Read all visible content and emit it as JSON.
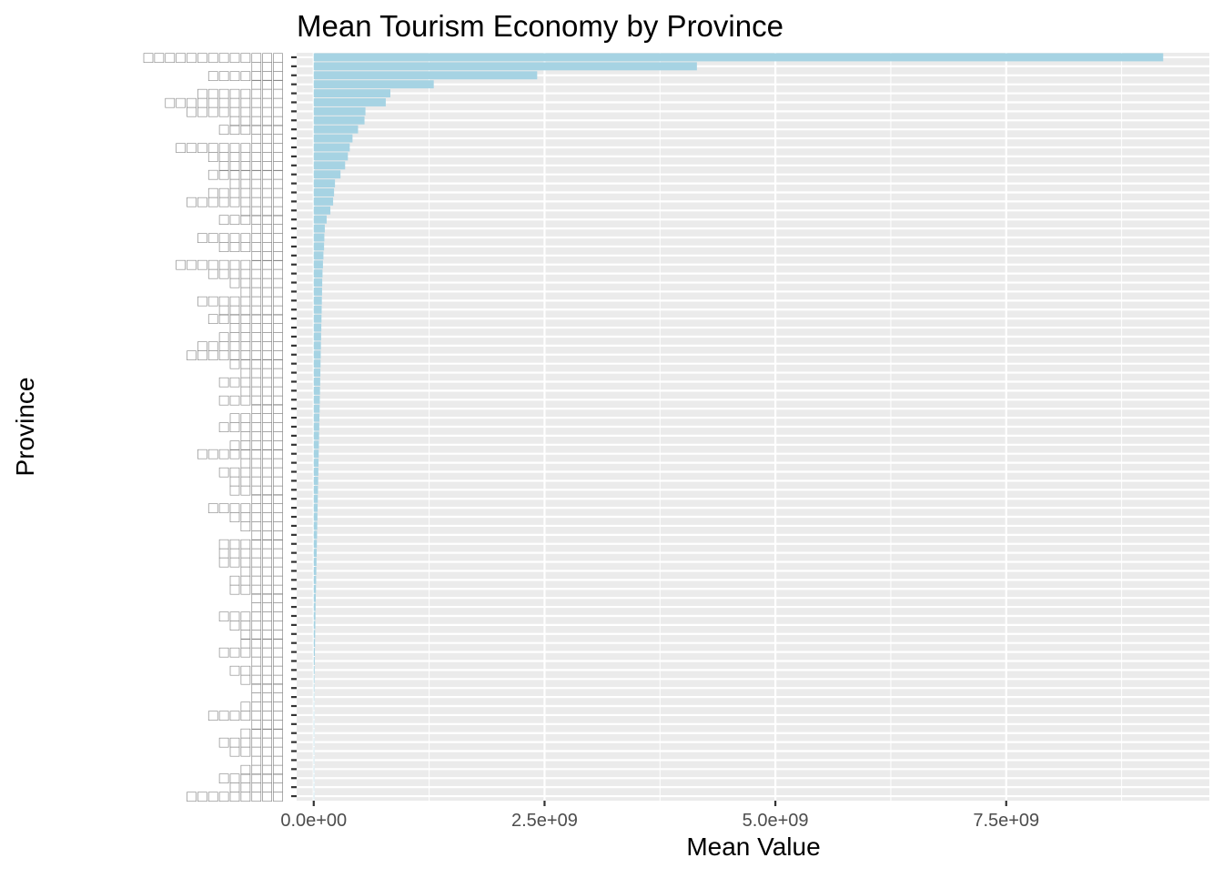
{
  "chart_data": {
    "type": "bar",
    "orientation": "horizontal",
    "title": "Mean Tourism Economy by Province",
    "xlabel": "Mean Value",
    "ylabel": "Province",
    "xlim": [
      -185000000,
      9700000000
    ],
    "xticks": [
      {
        "value": 0,
        "label": "0.0e+00"
      },
      {
        "value": 2500000000,
        "label": "2.5e+09"
      },
      {
        "value": 5000000000,
        "label": "5.0e+09"
      },
      {
        "value": 7500000000,
        "label": "7.5e+09"
      }
    ],
    "grid": true,
    "legend": "none",
    "colors": {
      "bar": "#a6d3e3",
      "panel": "#ebebeb",
      "grid": "#ffffff",
      "tick": "#333333"
    },
    "category_labels": [
      "□□□□□□□□□□□□□",
      "□□□",
      "□□□□□□□",
      "□□□",
      "□□□□□□□□",
      "□□□□□□□□□□□",
      "□□□□□□□□□",
      "□□□□□",
      "□□□□□□",
      "□□□",
      "□□□□□□□□□□",
      "□□□□□□□",
      "□□□□□□",
      "□□□□□□□",
      "□□□□□",
      "□□□□□□□",
      "□□□□□□□□□",
      "□□□□",
      "□□□□□□",
      "□□□",
      "□□□□□□□□",
      "□□□□□□",
      "□□□",
      "□□□□□□□□□□",
      "□□□□□□□",
      "□□□□□",
      "□□□□",
      "□□□□□□□□",
      "□□□□□□",
      "□□□□□□□",
      "□□□□□",
      "□□□□□□",
      "□□□□□□□□",
      "□□□□□□□□□",
      "□□□□□",
      "□□□□",
      "□□□□□□",
      "□□□□",
      "□□□□□□",
      "□□□",
      "□□□□□",
      "□□□□□□",
      "□□□□",
      "□□□□□",
      "□□□□□□□□",
      "□□□□",
      "□□□□□□",
      "□□□□□",
      "□□□□□",
      "□□□",
      "□□□□□□□",
      "□□□□□",
      "□□□□",
      "□□□",
      "□□□□□□",
      "□□□□□□",
      "□□□□□□",
      "□□□□",
      "□□□□□",
      "□□□□□",
      "□□□",
      "□□□",
      "□□□□□□",
      "□□□□□",
      "□□□□",
      "□□□□",
      "□□□□□□",
      "□□□",
      "□□□□□",
      "□□□□",
      "□□□",
      "□□□",
      "□□□□",
      "□□□□□□□",
      "□□□",
      "□□□□",
      "□□□□□□",
      "□□□□□",
      "□□□",
      "□□□□",
      "□□□□□□",
      "□□□□□",
      "□□□□□□□□□"
    ],
    "values": [
      9200000000,
      4150000000,
      2420000000,
      1300000000,
      830000000,
      780000000,
      560000000,
      550000000,
      480000000,
      420000000,
      390000000,
      370000000,
      340000000,
      290000000,
      230000000,
      220000000,
      210000000,
      180000000,
      140000000,
      120000000,
      115000000,
      112000000,
      105000000,
      100000000,
      95000000,
      92000000,
      90000000,
      88000000,
      86000000,
      84000000,
      82000000,
      80000000,
      78000000,
      76000000,
      74000000,
      72000000,
      70000000,
      68000000,
      66000000,
      64000000,
      62000000,
      60000000,
      58000000,
      56000000,
      54000000,
      52000000,
      50000000,
      48000000,
      46000000,
      44000000,
      42000000,
      40000000,
      38000000,
      36000000,
      34000000,
      32000000,
      30000000,
      28000000,
      26000000,
      24000000,
      22000000,
      20000000,
      18500000,
      17000000,
      15500000,
      14000000,
      12500000,
      11000000,
      9500000,
      8000000,
      7000000,
      6000000,
      5000000,
      4000000,
      3000000,
      2500000,
      2000000,
      1500000,
      1000000,
      800000,
      600000,
      400000,
      200000
    ]
  }
}
